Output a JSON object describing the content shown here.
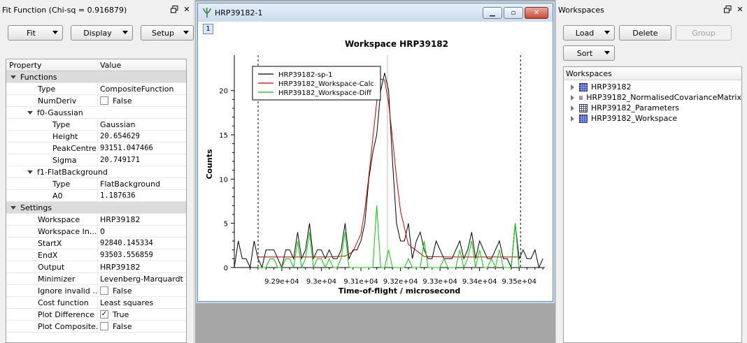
{
  "fit_dock": {
    "title": "Fit Function (Chi-sq = 0.916879)",
    "buttons": {
      "fit": "Fit",
      "display": "Display",
      "setup": "Setup"
    },
    "table_header": {
      "property": "Property",
      "value": "Value"
    },
    "groups": {
      "functions": "Functions",
      "settings": "Settings"
    },
    "rows": {
      "type": {
        "label": "Type",
        "value": "CompositeFunction"
      },
      "numderiv": {
        "label": "NumDeriv",
        "value": "False"
      },
      "f0": {
        "label": "f0-Gaussian"
      },
      "f0_type": {
        "label": "Type",
        "value": "Gaussian"
      },
      "f0_height": {
        "label": "Height",
        "value": "20.654629"
      },
      "f0_peak": {
        "label": "PeakCentre",
        "value": "93151.047466"
      },
      "f0_sigma": {
        "label": "Sigma",
        "value": "20.749171"
      },
      "f1": {
        "label": "f1-FlatBackground"
      },
      "f1_type": {
        "label": "Type",
        "value": "FlatBackground"
      },
      "f1_a0": {
        "label": "A0",
        "value": "1.187636"
      },
      "workspace": {
        "label": "Workspace",
        "value": "HRP39182"
      },
      "ws_index": {
        "label": "Workspace In...",
        "value": "0"
      },
      "startx": {
        "label": "StartX",
        "value": "92840.145334"
      },
      "endx": {
        "label": "EndX",
        "value": "93503.556859"
      },
      "output": {
        "label": "Output",
        "value": "HRP39182"
      },
      "minimizer": {
        "label": "Minimizer",
        "value": "Levenberg-Marquardt"
      },
      "ignore_invalid": {
        "label": "Ignore invalid ...",
        "value": "False"
      },
      "cost": {
        "label": "Cost function",
        "value": "Least squares"
      },
      "plot_diff": {
        "label": "Plot Difference",
        "value": "True"
      },
      "plot_composite": {
        "label": "Plot Composite...",
        "value": "False"
      }
    }
  },
  "plot_window": {
    "title": "HRP39182-1",
    "layer_number": "1"
  },
  "chart_data": {
    "type": "line",
    "title": "Workspace HRP39182",
    "xlabel": "Time-of-flight / microsecond",
    "ylabel": "Counts",
    "xlim": [
      92780,
      93565
    ],
    "ylim": [
      0,
      24
    ],
    "x_ticks": [
      92900,
      93000,
      93100,
      93200,
      93300,
      93400,
      93500
    ],
    "x_tick_labels": [
      "9.29e+04",
      "9.3e+04",
      "9.31e+04",
      "9.32e+04",
      "9.33e+04",
      "9.34e+04",
      "9.35e+04"
    ],
    "y_ticks": [
      0,
      5,
      10,
      15,
      20
    ],
    "y_tick_labels": [
      "0",
      "5",
      "10",
      "15",
      "20"
    ],
    "range_markers": [
      92840.145334,
      93503.556859
    ],
    "center_marker": 93151.047466,
    "legend_position": "top-left",
    "colors": {
      "data": "#000000",
      "calc": "#cc0000",
      "diff": "#00cc00"
    },
    "series": [
      {
        "name": "HRP39182-sp-1",
        "color": "#000000",
        "x": [
          92780,
          92790,
          92800,
          92810,
          92820,
          92830,
          92840,
          92850,
          92860,
          92870,
          92880,
          92890,
          92900,
          92910,
          92920,
          92930,
          92940,
          92950,
          92960,
          92970,
          92980,
          92990,
          93000,
          93010,
          93020,
          93030,
          93040,
          93050,
          93060,
          93070,
          93080,
          93090,
          93100,
          93110,
          93120,
          93130,
          93140,
          93150,
          93160,
          93170,
          93180,
          93190,
          93200,
          93210,
          93220,
          93230,
          93240,
          93250,
          93260,
          93270,
          93280,
          93290,
          93300,
          93310,
          93320,
          93330,
          93340,
          93350,
          93360,
          93370,
          93380,
          93390,
          93400,
          93410,
          93420,
          93430,
          93440,
          93450,
          93460,
          93470,
          93480,
          93490,
          93500,
          93510,
          93520,
          93530,
          93540,
          93550,
          93560
        ],
        "y": [
          0,
          3,
          1,
          1,
          0,
          3,
          1,
          0,
          2,
          2,
          2,
          1,
          0,
          2,
          2,
          1,
          4,
          1,
          2,
          5,
          1,
          2,
          2,
          1,
          2,
          1,
          1,
          2,
          5,
          1,
          2,
          2,
          3,
          5,
          10,
          13,
          15,
          20,
          22,
          20,
          12,
          5,
          3,
          3,
          5,
          1,
          3,
          4,
          2,
          1,
          1,
          3,
          2,
          1,
          1,
          1,
          2,
          3,
          1,
          2,
          4,
          1,
          3,
          2,
          1,
          1,
          2,
          3,
          1,
          1,
          0,
          5,
          1,
          2,
          1,
          1,
          2,
          0,
          1
        ]
      },
      {
        "name": "HRP39182_Workspace-Calc",
        "color": "#cc0000",
        "x": [
          92840,
          92900,
          92960,
          93020,
          93060,
          93080,
          93100,
          93110,
          93120,
          93130,
          93140,
          93150,
          93160,
          93170,
          93180,
          93190,
          93200,
          93220,
          93260,
          93320,
          93400,
          93500
        ],
        "y": [
          1.19,
          1.19,
          1.19,
          1.19,
          1.3,
          1.8,
          3.8,
          6.5,
          10.3,
          14.6,
          18.7,
          21.3,
          21.2,
          18.6,
          14.6,
          10.2,
          6.4,
          2.6,
          1.25,
          1.19,
          1.19,
          1.19
        ]
      },
      {
        "name": "HRP39182_Workspace-Diff",
        "color": "#00cc00",
        "x": [
          92840,
          92850,
          92860,
          92870,
          92880,
          92890,
          92900,
          92910,
          92920,
          92930,
          92940,
          92950,
          92960,
          92970,
          92980,
          92990,
          93000,
          93010,
          93020,
          93030,
          93040,
          93050,
          93060,
          93070,
          93080,
          93090,
          93100,
          93110,
          93120,
          93130,
          93140,
          93150,
          93160,
          93170,
          93180,
          93190,
          93200,
          93210,
          93220,
          93230,
          93240,
          93250,
          93260,
          93270,
          93280,
          93290,
          93300,
          93310,
          93320,
          93330,
          93340,
          93350,
          93360,
          93370,
          93380,
          93390,
          93400,
          93410,
          93420,
          93430,
          93440,
          93450,
          93460,
          93470,
          93480,
          93490,
          93500
        ],
        "y": [
          0,
          0,
          0,
          1,
          1,
          0,
          0,
          1,
          1,
          0,
          3,
          0,
          1,
          4,
          0,
          1,
          1,
          0,
          1,
          0,
          0,
          1,
          4,
          0,
          0,
          0,
          0,
          0,
          0,
          0,
          7,
          0,
          0,
          2,
          0,
          0,
          0,
          0,
          1,
          0,
          0,
          0,
          3,
          0,
          0,
          0,
          0,
          1,
          0,
          0,
          0,
          2,
          0,
          1,
          3,
          0,
          2,
          0,
          0,
          1,
          0,
          2,
          0,
          0,
          0,
          5,
          0
        ]
      }
    ]
  },
  "ws_dock": {
    "title": "Workspaces",
    "buttons": {
      "load": "Load",
      "delete": "Delete",
      "group": "Group",
      "sort": "Sort"
    },
    "tree_header": "Workspaces",
    "items": [
      {
        "name": "HRP39182",
        "icon": "matrix-workspace-icon"
      },
      {
        "name": "HRP39182_NormalisedCovarianceMatrix",
        "icon": "table-workspace-icon"
      },
      {
        "name": "HRP39182_Parameters",
        "icon": "table-workspace-icon"
      },
      {
        "name": "HRP39182_Workspace",
        "icon": "matrix-workspace-icon"
      }
    ]
  }
}
